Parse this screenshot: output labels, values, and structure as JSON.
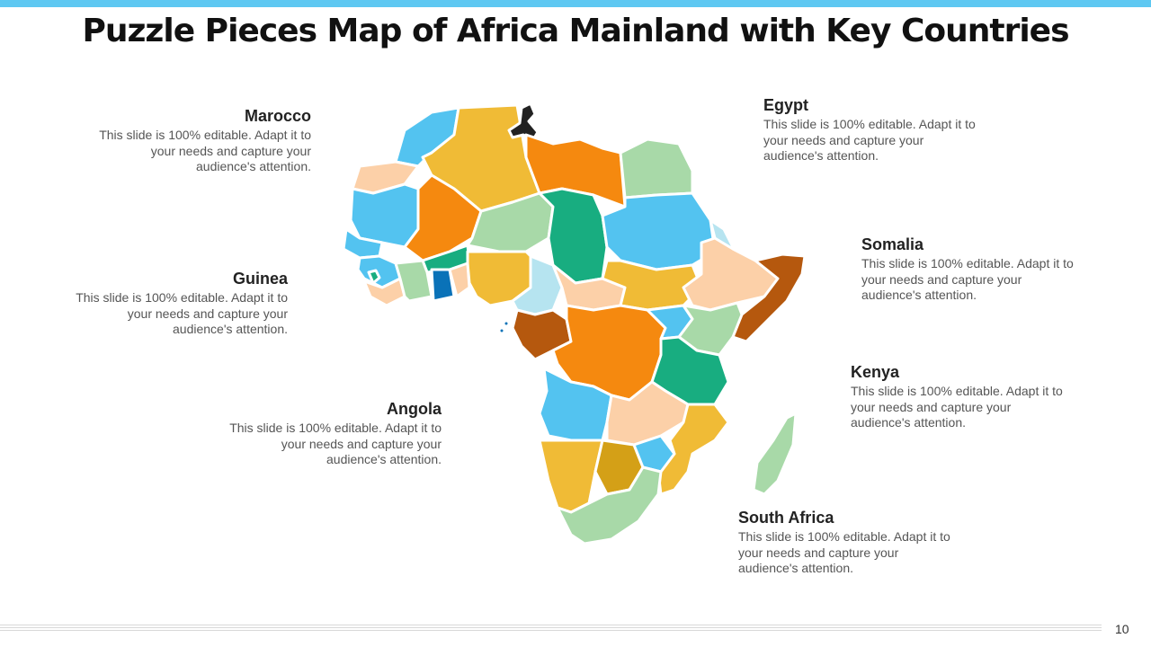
{
  "title": "Puzzle Pieces Map of Africa Mainland with Key Countries",
  "callouts": {
    "marocco": {
      "name": "Marocco",
      "text": "This slide is 100% editable. Adapt it to your needs and capture your audience's attention."
    },
    "guinea": {
      "name": "Guinea",
      "text": "This slide is 100% editable. Adapt it to your needs and capture your audience's attention."
    },
    "angola": {
      "name": "Angola",
      "text": "This slide is 100% editable. Adapt it to your needs and capture your audience's attention."
    },
    "egypt": {
      "name": "Egypt",
      "text": "This slide is 100% editable. Adapt it to your needs and capture your audience's attention."
    },
    "somalia": {
      "name": "Somalia",
      "text": "This slide is 100% editable. Adapt it to your needs and capture your audience's attention."
    },
    "kenya": {
      "name": "Kenya",
      "text": "This slide is 100% editable. Adapt it to your needs and capture your audience's attention."
    },
    "south_africa": {
      "name": "South Africa",
      "text": "This slide is 100% editable. Adapt it to your needs and capture your audience's attention."
    }
  },
  "colors": {
    "accent_bar": "#5ec8f2",
    "orange": "#f5890f",
    "yellow": "#f0bb36",
    "light_blue": "#53c3f0",
    "light_green": "#a8d9a8",
    "teal": "#18ad80",
    "peach": "#fcd0a8",
    "brown": "#b5580e",
    "mustard": "#d4a017",
    "dark_blue": "#0a72b8",
    "pale_cyan": "#b6e4f0"
  },
  "page_number": "10"
}
